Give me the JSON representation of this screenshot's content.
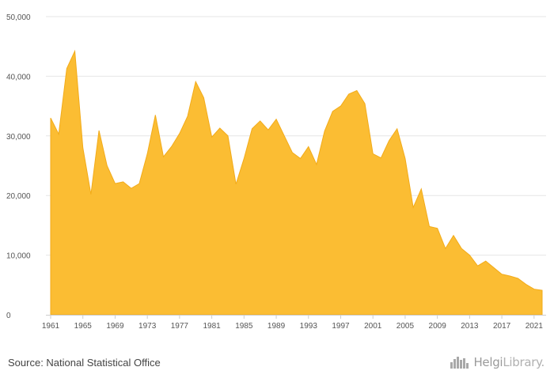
{
  "source_text": "Source: National Statistical Office",
  "brand": {
    "name_main": "Helgi",
    "name_suffix": "Library.",
    "icon": "skyline-logo-icon"
  },
  "colors": {
    "area_fill": "#fbbd33",
    "area_stroke": "#f2ab1a",
    "grid": "#e6e6e6"
  },
  "chart_data": {
    "type": "area",
    "title": "",
    "xlabel": "",
    "ylabel": "",
    "ylim": [
      0,
      50000
    ],
    "yticks": [
      0,
      10000,
      20000,
      30000,
      40000,
      50000
    ],
    "ytick_labels": [
      "0",
      "10,000",
      "20,000",
      "30,000",
      "40,000",
      "50,000"
    ],
    "xlim": [
      1961,
      2022
    ],
    "xticks": [
      1961,
      1965,
      1969,
      1973,
      1977,
      1981,
      1985,
      1989,
      1993,
      1997,
      2001,
      2005,
      2009,
      2013,
      2017,
      2021
    ],
    "xtick_labels": [
      "1961",
      "1965",
      "1969",
      "1973",
      "1977",
      "1981",
      "1985",
      "1989",
      "1993",
      "1997",
      "2001",
      "2005",
      "2009",
      "2013",
      "2017",
      "2021"
    ],
    "grid": true,
    "legend": "none",
    "series": [
      {
        "name": "",
        "x": [
          1961,
          1962,
          1963,
          1964,
          1965,
          1966,
          1967,
          1968,
          1969,
          1970,
          1971,
          1972,
          1973,
          1974,
          1975,
          1976,
          1977,
          1978,
          1979,
          1980,
          1981,
          1982,
          1983,
          1984,
          1985,
          1986,
          1987,
          1988,
          1989,
          1990,
          1991,
          1992,
          1993,
          1994,
          1995,
          1996,
          1997,
          1998,
          1999,
          2000,
          2001,
          2002,
          2003,
          2004,
          2005,
          2006,
          2007,
          2008,
          2009,
          2010,
          2011,
          2012,
          2013,
          2014,
          2015,
          2016,
          2017,
          2018,
          2019,
          2020,
          2021,
          2022
        ],
        "values": [
          33000,
          30300,
          41300,
          44200,
          28000,
          20200,
          30900,
          25000,
          22000,
          22300,
          21200,
          22000,
          27000,
          33500,
          26500,
          28200,
          30400,
          33300,
          39100,
          36400,
          29800,
          31300,
          30000,
          21900,
          26200,
          31200,
          32500,
          31000,
          32800,
          30000,
          27200,
          26200,
          28200,
          25200,
          30800,
          34100,
          35000,
          37000,
          37600,
          35400,
          27000,
          26300,
          29200,
          31200,
          26200,
          18000,
          21100,
          14800,
          14500,
          11100,
          13300,
          11100,
          10000,
          8200,
          9000,
          7900,
          6800,
          6500,
          6100,
          5100,
          4300,
          4100
        ]
      }
    ]
  }
}
